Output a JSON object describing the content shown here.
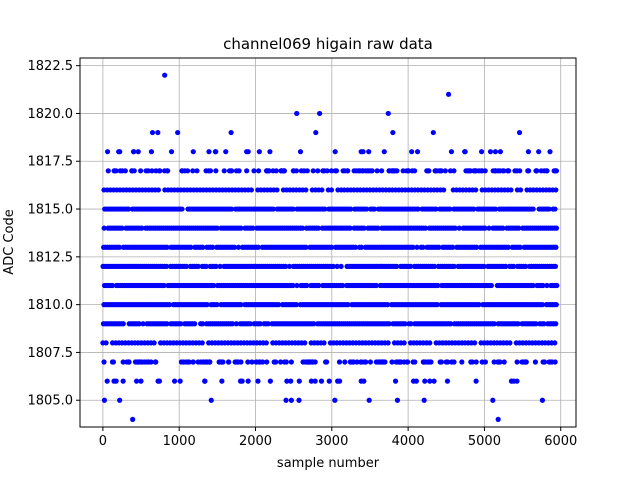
{
  "chart_data": {
    "type": "scatter",
    "title": "channel069 higain raw data",
    "xlabel": "sample number",
    "ylabel": "ADC Code",
    "xlim": [
      -300,
      6200
    ],
    "ylim": [
      1803.6,
      1822.9
    ],
    "xticks": [
      0,
      1000,
      2000,
      3000,
      4000,
      5000,
      6000
    ],
    "yticks": [
      1805.0,
      1807.5,
      1810.0,
      1812.5,
      1815.0,
      1817.5,
      1820.0,
      1822.5
    ],
    "xtick_labels": [
      "0",
      "1000",
      "2000",
      "3000",
      "4000",
      "5000",
      "6000"
    ],
    "ytick_labels": [
      "1805.0",
      "1807.5",
      "1810.0",
      "1812.5",
      "1815.0",
      "1817.5",
      "1820.0",
      "1822.5"
    ],
    "grid": true,
    "marker_color": "#0000ff",
    "x_range": [
      0,
      5950
    ],
    "dense_levels": [
      1808,
      1809,
      1810,
      1811,
      1812,
      1813,
      1814,
      1815,
      1816
    ],
    "sparse_levels": [
      {
        "y": 1807,
        "points_approx": 150
      },
      {
        "y": 1817,
        "points_approx": 150
      },
      {
        "y": 1806,
        "points_approx": 40
      },
      {
        "y": 1818,
        "points_approx": 35
      }
    ],
    "outliers": [
      {
        "x": 20,
        "y": 1805
      },
      {
        "x": 220,
        "y": 1805
      },
      {
        "x": 1420,
        "y": 1805
      },
      {
        "x": 2400,
        "y": 1805
      },
      {
        "x": 2470,
        "y": 1805
      },
      {
        "x": 2570,
        "y": 1805
      },
      {
        "x": 3040,
        "y": 1805
      },
      {
        "x": 3490,
        "y": 1805
      },
      {
        "x": 3860,
        "y": 1805
      },
      {
        "x": 4210,
        "y": 1805
      },
      {
        "x": 5110,
        "y": 1805
      },
      {
        "x": 5760,
        "y": 1805
      },
      {
        "x": 390,
        "y": 1804
      },
      {
        "x": 5180,
        "y": 1804
      },
      {
        "x": 650,
        "y": 1819
      },
      {
        "x": 720,
        "y": 1819
      },
      {
        "x": 980,
        "y": 1819
      },
      {
        "x": 1680,
        "y": 1819
      },
      {
        "x": 2790,
        "y": 1819
      },
      {
        "x": 3800,
        "y": 1819
      },
      {
        "x": 4330,
        "y": 1819
      },
      {
        "x": 5460,
        "y": 1819
      },
      {
        "x": 2540,
        "y": 1820
      },
      {
        "x": 2840,
        "y": 1820
      },
      {
        "x": 3740,
        "y": 1820
      },
      {
        "x": 4530,
        "y": 1821
      },
      {
        "x": 810,
        "y": 1822
      }
    ]
  }
}
